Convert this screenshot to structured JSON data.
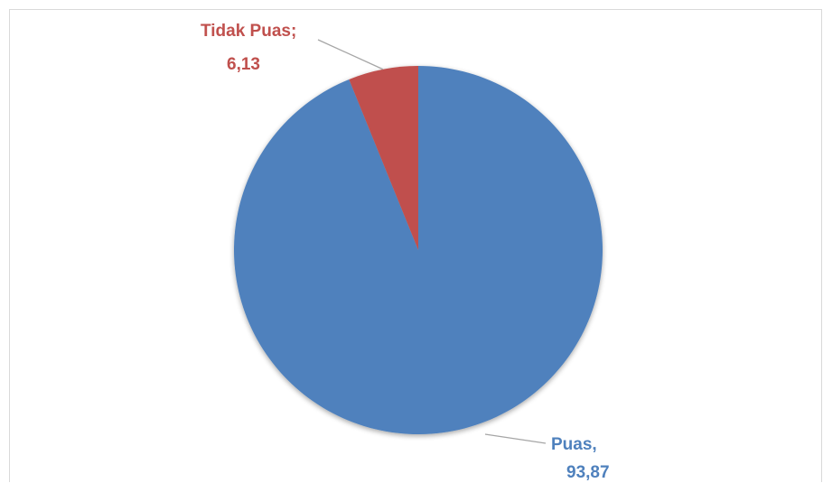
{
  "chart_data": {
    "type": "pie",
    "title": "",
    "legend": "none",
    "series": [
      {
        "slices": [
          {
            "label": "Tidak Puas;",
            "value_text": "6,13",
            "value": 6.13,
            "color": "#c0504d"
          },
          {
            "label": "Puas,",
            "value_text": "93,87",
            "value": 93.87,
            "color": "#4f81bd"
          }
        ]
      }
    ]
  }
}
